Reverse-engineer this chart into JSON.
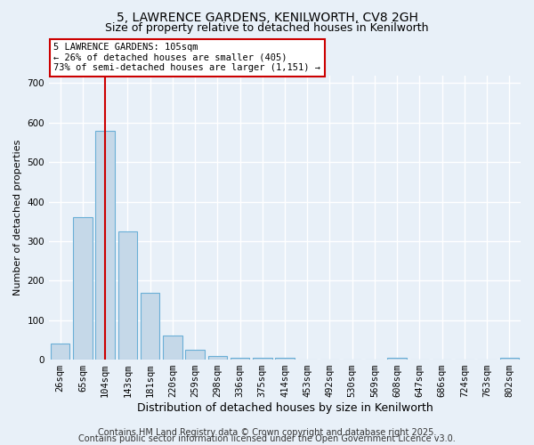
{
  "title": "5, LAWRENCE GARDENS, KENILWORTH, CV8 2GH",
  "subtitle": "Size of property relative to detached houses in Kenilworth",
  "xlabel": "Distribution of detached houses by size in Kenilworth",
  "ylabel": "Number of detached properties",
  "bin_labels": [
    "26sqm",
    "65sqm",
    "104sqm",
    "143sqm",
    "181sqm",
    "220sqm",
    "259sqm",
    "298sqm",
    "336sqm",
    "375sqm",
    "414sqm",
    "453sqm",
    "492sqm",
    "530sqm",
    "569sqm",
    "608sqm",
    "647sqm",
    "686sqm",
    "724sqm",
    "763sqm",
    "802sqm"
  ],
  "bar_heights": [
    40,
    360,
    580,
    325,
    170,
    60,
    25,
    10,
    5,
    5,
    5,
    0,
    0,
    0,
    0,
    5,
    0,
    0,
    0,
    0,
    5
  ],
  "bar_color": "#c5d8e8",
  "bar_edge_color": "#6aafd6",
  "ylim": [
    0,
    720
  ],
  "yticks": [
    0,
    100,
    200,
    300,
    400,
    500,
    600,
    700
  ],
  "marker_color": "#cc0000",
  "annotation_title": "5 LAWRENCE GARDENS: 105sqm",
  "annotation_line1": "← 26% of detached houses are smaller (405)",
  "annotation_line2": "73% of semi-detached houses are larger (1,151) →",
  "annotation_box_color": "#ffffff",
  "annotation_border_color": "#cc0000",
  "footer_line1": "Contains HM Land Registry data © Crown copyright and database right 2025.",
  "footer_line2": "Contains public sector information licensed under the Open Government Licence v3.0.",
  "background_color": "#e8f0f8",
  "plot_background_color": "#e8f0f8",
  "grid_color": "#ffffff",
  "title_fontsize": 10,
  "subtitle_fontsize": 9,
  "footer_fontsize": 7,
  "tick_label_fontsize": 7.5,
  "ylabel_fontsize": 8,
  "xlabel_fontsize": 9
}
